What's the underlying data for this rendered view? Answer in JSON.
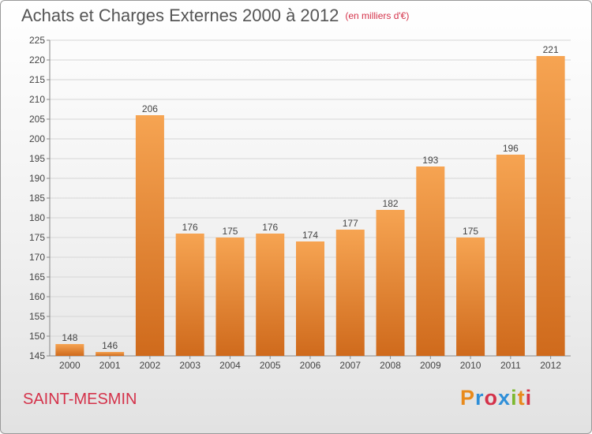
{
  "header": {
    "title": "Achats et Charges Externes 2000 à 2012",
    "unit": "(en milliers d'€)"
  },
  "footer": {
    "commune": "SAINT-MESMIN",
    "logo": {
      "letters": [
        "P",
        "r",
        "o",
        "x",
        "i",
        "t",
        "i"
      ],
      "colors": [
        "#e88a1c",
        "#2f8fd8",
        "#d4324a",
        "#2f8fd8",
        "#7cb82f",
        "#e88a1c",
        "#d4324a"
      ]
    }
  },
  "chart_data": {
    "type": "bar",
    "title": "Achats et Charges Externes 2000 à 2012",
    "subtitle": "(en milliers d'€)",
    "categories": [
      "2000",
      "2001",
      "2002",
      "2003",
      "2004",
      "2005",
      "2006",
      "2007",
      "2008",
      "2009",
      "2010",
      "2011",
      "2012"
    ],
    "values": [
      148,
      146,
      206,
      176,
      175,
      176,
      174,
      177,
      182,
      193,
      175,
      196,
      221
    ],
    "ylim": [
      145,
      225
    ],
    "yticks": [
      145,
      150,
      155,
      160,
      165,
      170,
      175,
      180,
      185,
      190,
      195,
      200,
      205,
      210,
      215,
      220,
      225
    ],
    "grid": true,
    "legend": "none",
    "bar_color": "#f0a050"
  }
}
